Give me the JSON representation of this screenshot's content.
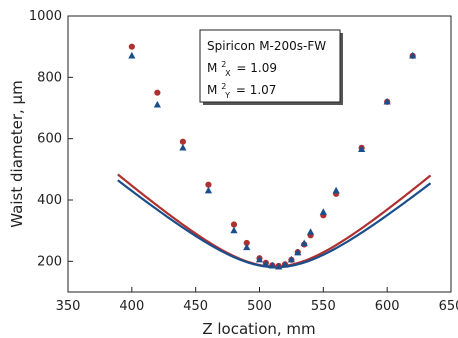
{
  "chart_data": {
    "type": "scatter",
    "xlabel": "Z location, mm",
    "ylabel": "Waist diameter, µm",
    "xlim": [
      350,
      650
    ],
    "ylim": [
      100,
      1000
    ],
    "x_ticks": [
      350,
      400,
      450,
      500,
      550,
      600,
      650
    ],
    "y_ticks": [
      200,
      400,
      600,
      800,
      1000
    ],
    "grid": false,
    "legend": {
      "placement": "top-center",
      "title": "Spiricon M-200s-FW",
      "line_x": {
        "base": "M",
        "sup": "2",
        "sub": "X",
        "value": "= 1.09"
      },
      "line_y": {
        "base": "M",
        "sup": "2",
        "sub": "Y",
        "value": "= 1.07"
      }
    },
    "series": [
      {
        "color": "#b03030",
        "marker": "circle",
        "points": [
          [
            400,
            900
          ],
          [
            420,
            750
          ],
          [
            440,
            590
          ],
          [
            460,
            450
          ],
          [
            480,
            320
          ],
          [
            490,
            260
          ],
          [
            500,
            210
          ],
          [
            505,
            195
          ],
          [
            510,
            187
          ],
          [
            515,
            185
          ],
          [
            520,
            190
          ],
          [
            525,
            205
          ],
          [
            530,
            230
          ],
          [
            535,
            255
          ],
          [
            540,
            285
          ],
          [
            550,
            350
          ],
          [
            560,
            420
          ],
          [
            580,
            570
          ],
          [
            600,
            720
          ],
          [
            620,
            870
          ]
        ],
        "fit": {
          "type": "hyperbola",
          "x0": 512,
          "w0": 183,
          "zr": 50.3,
          "x_range": [
            389,
            634
          ]
        }
      },
      {
        "color": "#1a4f8c",
        "marker": "triangle",
        "points": [
          [
            400,
            870
          ],
          [
            420,
            710
          ],
          [
            440,
            570
          ],
          [
            460,
            430
          ],
          [
            480,
            300
          ],
          [
            490,
            245
          ],
          [
            500,
            205
          ],
          [
            505,
            190
          ],
          [
            510,
            185
          ],
          [
            515,
            182
          ],
          [
            520,
            188
          ],
          [
            525,
            205
          ],
          [
            530,
            228
          ],
          [
            535,
            258
          ],
          [
            540,
            295
          ],
          [
            550,
            360
          ],
          [
            560,
            430
          ],
          [
            580,
            565
          ],
          [
            600,
            720
          ],
          [
            620,
            870
          ]
        ],
        "fit": {
          "type": "hyperbola",
          "x0": 513,
          "w0": 181,
          "zr": 52.5,
          "x_range": [
            389,
            634
          ]
        }
      }
    ]
  }
}
